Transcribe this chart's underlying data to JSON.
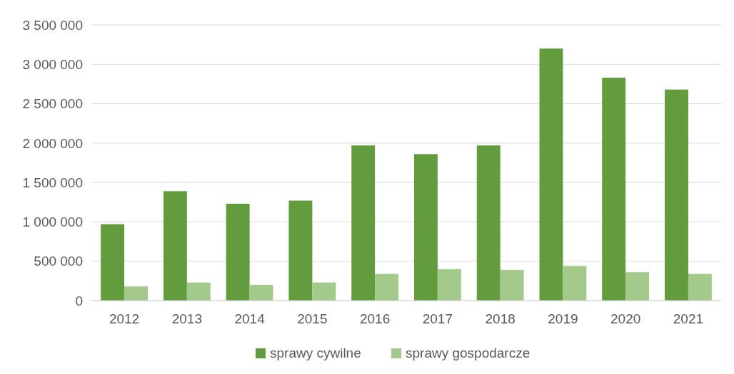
{
  "chart_data": {
    "type": "bar",
    "categories": [
      "2012",
      "2013",
      "2014",
      "2015",
      "2016",
      "2017",
      "2018",
      "2019",
      "2020",
      "2021"
    ],
    "series": [
      {
        "name": "sprawy cywilne",
        "color": "#629c3f",
        "values": [
          970000,
          1390000,
          1230000,
          1270000,
          1970000,
          1860000,
          1970000,
          3200000,
          2830000,
          2680000
        ]
      },
      {
        "name": "sprawy gospodarcze",
        "color": "#a3c98b",
        "values": [
          180000,
          230000,
          200000,
          230000,
          340000,
          400000,
          390000,
          440000,
          360000,
          340000
        ]
      }
    ],
    "ylim": [
      0,
      3500000
    ],
    "yticks": [
      {
        "value": 0,
        "label": "0"
      },
      {
        "value": 500000,
        "label": "500 000"
      },
      {
        "value": 1000000,
        "label": "1 000 000"
      },
      {
        "value": 1500000,
        "label": "1 500 000"
      },
      {
        "value": 2000000,
        "label": "2 000 000"
      },
      {
        "value": 2500000,
        "label": "2 500 000"
      },
      {
        "value": 3000000,
        "label": "3 000 000"
      },
      {
        "value": 3500000,
        "label": "3 500 000"
      }
    ],
    "grid": "y",
    "legend": "bottom"
  }
}
